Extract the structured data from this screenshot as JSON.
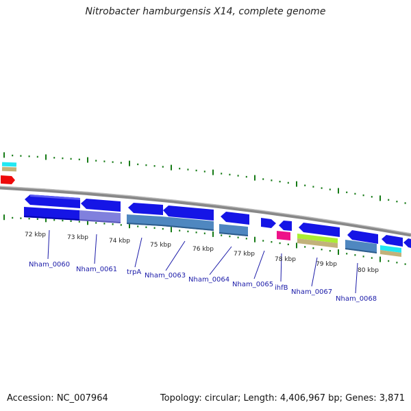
{
  "title": "Nitrobacter hamburgensis X14, complete genome",
  "accession": "Accession: NC_007964",
  "topology": "Topology: circular; Length: 4,406,967 bp; Genes: 3,871",
  "colors": {
    "cds": "#1515e6",
    "cds_dark": "#0000aa",
    "steelblue": "#4f87c0",
    "lavender": "#8080dd",
    "cyan": "#22e8f2",
    "tan": "#c2b27a",
    "red": "#ee0a0a",
    "magenta": "#ee1188",
    "lime": "#aaee33",
    "backbone": "#888888",
    "tick": "#157a15",
    "label": "#1a1aa8"
  },
  "kbp_labels": [
    "72 kbp",
    "73 kbp",
    "74 kbp",
    "75 kbp",
    "76 kbp",
    "77 kbp",
    "78 kbp",
    "79 kbp",
    "80 kbp"
  ],
  "gene_labels": [
    "Nham_0060",
    "Nham_0061",
    "trpA",
    "Nham_0063",
    "Nham_0064",
    "Nham_0065",
    "ihfB",
    "Nham_0067",
    "Nham_0068"
  ]
}
